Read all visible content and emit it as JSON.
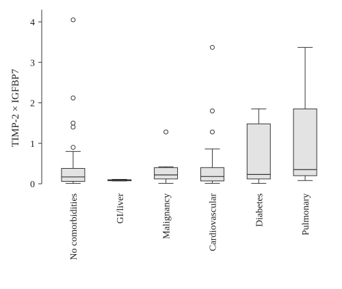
{
  "chart_data": {
    "type": "box",
    "title": "",
    "xlabel": "",
    "ylabel": "TIMP-2 × IGFBP7",
    "ylim": [
      0,
      4.3
    ],
    "yticks": [
      0,
      1,
      2,
      3,
      4
    ],
    "grid": false,
    "legend": "none",
    "colors": {
      "box_fill": "#e3e3e3",
      "stroke": "#333333"
    },
    "categories": [
      "No comorbidities",
      "GI/liver",
      "Malignancy",
      "Cardiovascular",
      "Diabetes",
      "Pulmonary"
    ],
    "series": [
      {
        "category": "No comorbidities",
        "whisker_low": 0.01,
        "q1": 0.06,
        "median": 0.17,
        "q3": 0.38,
        "whisker_high": 0.8,
        "outliers": [
          0.9,
          1.4,
          1.5,
          2.12,
          4.05
        ]
      },
      {
        "category": "GI/liver",
        "whisker_low": 0.07,
        "q1": 0.08,
        "median": 0.09,
        "q3": 0.1,
        "whisker_high": 0.11,
        "outliers": []
      },
      {
        "category": "Malignancy",
        "whisker_low": 0.01,
        "q1": 0.12,
        "median": 0.22,
        "q3": 0.4,
        "whisker_high": 0.42,
        "outliers": [
          1.28
        ]
      },
      {
        "category": "Cardiovascular",
        "whisker_low": 0.01,
        "q1": 0.07,
        "median": 0.18,
        "q3": 0.4,
        "whisker_high": 0.86,
        "outliers": [
          1.28,
          1.8,
          3.37
        ]
      },
      {
        "category": "Diabetes",
        "whisker_low": 0.01,
        "q1": 0.12,
        "median": 0.23,
        "q3": 1.48,
        "whisker_high": 1.85,
        "outliers": []
      },
      {
        "category": "Pulmonary",
        "whisker_low": 0.08,
        "q1": 0.2,
        "median": 0.35,
        "q3": 1.85,
        "whisker_high": 3.37,
        "outliers": []
      }
    ]
  }
}
